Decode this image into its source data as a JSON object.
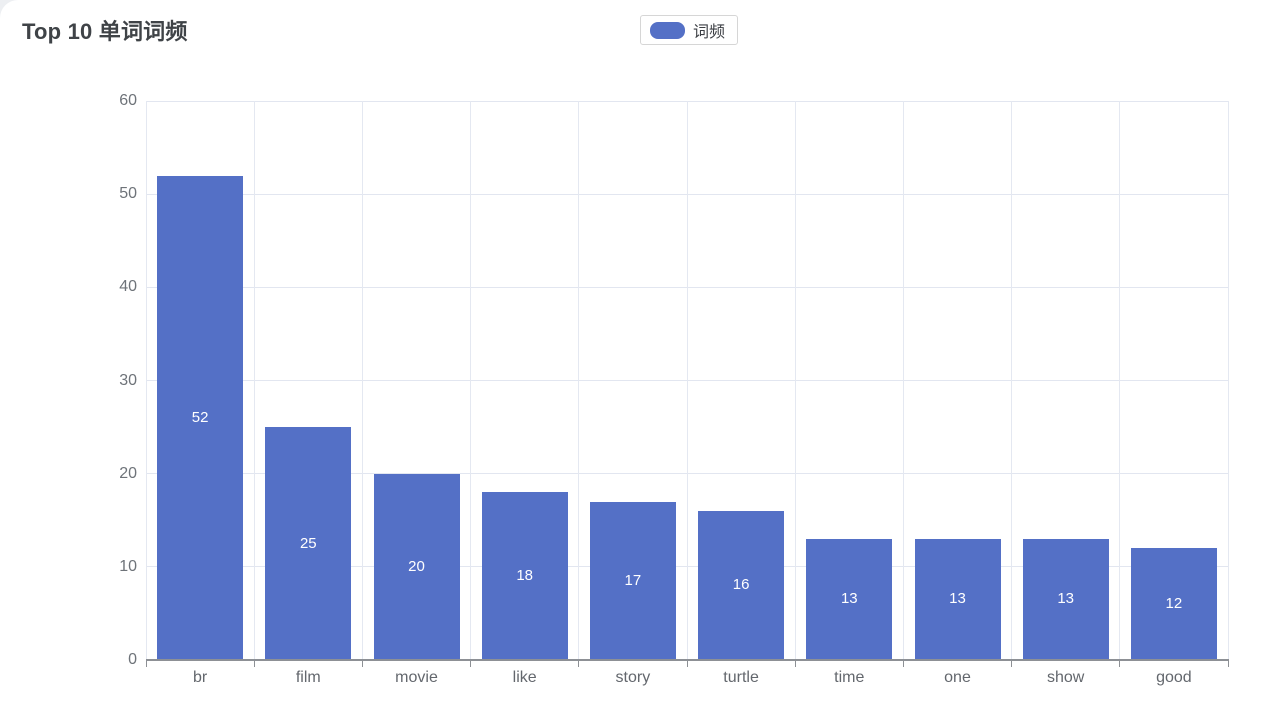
{
  "page": {
    "title": "Top 10 单词词频"
  },
  "legend": {
    "items": [
      {
        "label": "词频",
        "color": "#5470c6"
      }
    ]
  },
  "chart_data": {
    "type": "bar",
    "title": "Top 10 单词词频",
    "categories": [
      "br",
      "film",
      "movie",
      "like",
      "story",
      "turtle",
      "time",
      "one",
      "show",
      "good"
    ],
    "series": [
      {
        "name": "词频",
        "values": [
          52,
          25,
          20,
          18,
          17,
          16,
          13,
          13,
          13,
          12
        ]
      }
    ],
    "xlabel": "",
    "ylabel": "",
    "ylim": [
      0,
      60
    ],
    "y_ticks": [
      0,
      10,
      20,
      30,
      40,
      50,
      60
    ],
    "grid": "on",
    "legend_position": "top-center",
    "value_labels": "inside-middle-white",
    "bar_color": "#5470c6"
  },
  "colors": {
    "bar": "#5470c6",
    "grid_line": "#e2e6f0",
    "axis_line": "#8d9095",
    "axis_label": "#6e7379",
    "title_text": "#3f4347",
    "value_label": "#ffffff",
    "card_background": "#ffffff",
    "page_background": "#edeff2"
  }
}
